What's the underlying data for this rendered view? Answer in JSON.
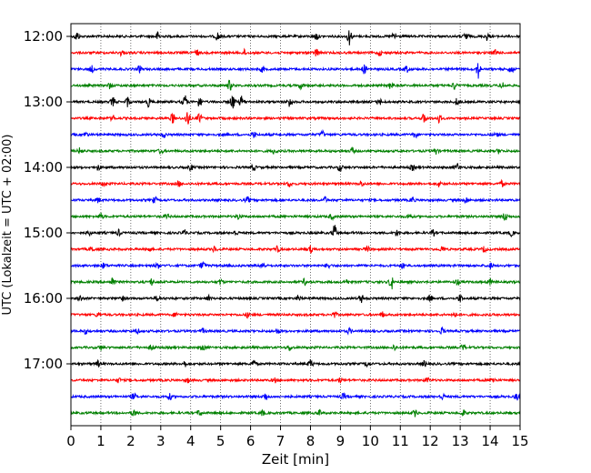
{
  "chart_data": {
    "type": "line",
    "title": "",
    "xlabel": "Zeit  [min]",
    "ylabel": "UTC (Lokalzeit = UTC + 02:00)",
    "xlim": [
      0,
      15
    ],
    "x_ticks": [
      "0",
      "1",
      "2",
      "3",
      "4",
      "5",
      "6",
      "7",
      "8",
      "9",
      "10",
      "11",
      "12",
      "13",
      "14",
      "15"
    ],
    "y_ticks": [
      "12:00",
      "13:00",
      "14:00",
      "15:00",
      "16:00",
      "17:00"
    ],
    "grid": "vertical dotted",
    "trace_colors": [
      "#000000",
      "#ff0000",
      "#0000ff",
      "#008000"
    ],
    "traces": [
      {
        "start": "12:00",
        "color": "#000000",
        "events": [
          [
            0.2,
            0.5
          ],
          [
            2.9,
            0.45
          ],
          [
            4.9,
            0.45
          ],
          [
            8.2,
            0.4
          ],
          [
            9.3,
            0.9
          ],
          [
            10.8,
            0.4
          ],
          [
            13.2,
            0.45
          ],
          [
            13.9,
            0.4
          ]
        ]
      },
      {
        "start": "12:15",
        "color": "#ff0000",
        "events": [
          [
            1.7,
            0.3
          ],
          [
            4.2,
            0.3
          ],
          [
            5.8,
            0.3
          ],
          [
            8.2,
            0.45
          ],
          [
            10.3,
            0.3
          ],
          [
            14.2,
            0.35
          ]
        ]
      },
      {
        "start": "12:30",
        "color": "#0000ff",
        "events": [
          [
            0.7,
            0.35
          ],
          [
            2.3,
            0.35
          ],
          [
            6.4,
            0.3
          ],
          [
            9.8,
            0.45
          ],
          [
            11.2,
            0.35
          ],
          [
            13.6,
            0.95
          ],
          [
            14.7,
            0.45
          ]
        ]
      },
      {
        "start": "12:45",
        "color": "#008000",
        "events": [
          [
            1.3,
            0.3
          ],
          [
            5.3,
            0.55
          ],
          [
            7.7,
            0.35
          ],
          [
            10.7,
            0.45
          ],
          [
            12.8,
            0.4
          ],
          [
            14.4,
            0.35
          ]
        ]
      },
      {
        "start": "13:00",
        "color": "#000000",
        "events": [
          [
            1.4,
            0.5
          ],
          [
            1.9,
            0.55
          ],
          [
            2.6,
            0.5
          ],
          [
            3.8,
            0.75
          ],
          [
            4.3,
            0.6
          ],
          [
            5.4,
            0.85
          ],
          [
            5.7,
            0.6
          ],
          [
            7.3,
            0.6
          ],
          [
            10.3,
            0.35
          ],
          [
            12.9,
            0.4
          ]
        ]
      },
      {
        "start": "13:15",
        "color": "#ff0000",
        "events": [
          [
            1.4,
            0.3
          ],
          [
            3.4,
            0.55
          ],
          [
            3.9,
            0.9
          ],
          [
            4.3,
            0.5
          ],
          [
            11.8,
            0.5
          ],
          [
            12.3,
            0.45
          ]
        ]
      },
      {
        "start": "13:30",
        "color": "#0000ff",
        "events": [
          [
            0.5,
            0.25
          ],
          [
            3.1,
            0.3
          ],
          [
            6.1,
            0.3
          ],
          [
            8.4,
            0.35
          ],
          [
            11.5,
            0.35
          ],
          [
            14.2,
            0.25
          ]
        ]
      },
      {
        "start": "13:45",
        "color": "#008000",
        "events": [
          [
            0.3,
            0.3
          ],
          [
            3.0,
            0.3
          ],
          [
            6.8,
            0.3
          ],
          [
            9.4,
            0.3
          ],
          [
            12.2,
            0.3
          ],
          [
            14.3,
            0.25
          ]
        ]
      },
      {
        "start": "14:00",
        "color": "#000000",
        "events": [
          [
            0.9,
            0.3
          ],
          [
            4.0,
            0.3
          ],
          [
            6.1,
            0.3
          ],
          [
            9.0,
            0.4
          ],
          [
            11.4,
            0.3
          ],
          [
            12.9,
            0.4
          ]
        ]
      },
      {
        "start": "14:15",
        "color": "#ff0000",
        "events": [
          [
            1.1,
            0.25
          ],
          [
            3.6,
            0.3
          ],
          [
            7.3,
            0.3
          ],
          [
            9.7,
            0.3
          ],
          [
            12.3,
            0.3
          ],
          [
            14.4,
            0.3
          ]
        ]
      },
      {
        "start": "14:30",
        "color": "#0000ff",
        "events": [
          [
            0.9,
            0.3
          ],
          [
            2.8,
            0.3
          ],
          [
            5.9,
            0.3
          ],
          [
            8.5,
            0.3
          ],
          [
            11.4,
            0.3
          ],
          [
            13.2,
            0.3
          ]
        ]
      },
      {
        "start": "14:45",
        "color": "#008000",
        "events": [
          [
            1.0,
            0.35
          ],
          [
            3.2,
            0.3
          ],
          [
            5.6,
            0.3
          ],
          [
            8.7,
            0.3
          ],
          [
            11.3,
            0.3
          ],
          [
            14.5,
            0.5
          ]
        ]
      },
      {
        "start": "15:00",
        "color": "#000000",
        "events": [
          [
            0.6,
            0.3
          ],
          [
            1.6,
            0.3
          ],
          [
            3.8,
            0.3
          ],
          [
            5.5,
            0.3
          ],
          [
            8.8,
            0.85
          ],
          [
            10.9,
            0.35
          ],
          [
            12.1,
            0.3
          ],
          [
            14.7,
            0.3
          ]
        ]
      },
      {
        "start": "15:15",
        "color": "#ff0000",
        "events": [
          [
            0.7,
            0.3
          ],
          [
            2.6,
            0.3
          ],
          [
            4.8,
            0.3
          ],
          [
            6.9,
            0.3
          ],
          [
            8.0,
            0.35
          ],
          [
            9.9,
            0.3
          ],
          [
            12.4,
            0.3
          ],
          [
            13.8,
            0.3
          ]
        ]
      },
      {
        "start": "15:30",
        "color": "#0000ff",
        "events": [
          [
            1.1,
            0.3
          ],
          [
            2.9,
            0.3
          ],
          [
            4.4,
            0.5
          ],
          [
            6.4,
            0.4
          ],
          [
            8.6,
            0.3
          ],
          [
            11.1,
            0.35
          ],
          [
            14.0,
            0.3
          ]
        ]
      },
      {
        "start": "15:45",
        "color": "#008000",
        "events": [
          [
            1.4,
            0.55
          ],
          [
            2.7,
            0.35
          ],
          [
            5.0,
            0.3
          ],
          [
            7.8,
            0.3
          ],
          [
            9.2,
            0.3
          ],
          [
            10.7,
            0.8
          ],
          [
            12.9,
            0.3
          ],
          [
            14.0,
            0.3
          ]
        ]
      },
      {
        "start": "16:00",
        "color": "#000000",
        "events": [
          [
            0.3,
            0.3
          ],
          [
            1.7,
            0.3
          ],
          [
            2.9,
            0.3
          ],
          [
            4.6,
            0.3
          ],
          [
            7.6,
            0.3
          ],
          [
            9.7,
            0.4
          ],
          [
            12.0,
            0.35
          ],
          [
            13.0,
            0.4
          ]
        ]
      },
      {
        "start": "16:15",
        "color": "#ff0000",
        "events": [
          [
            0.9,
            0.25
          ],
          [
            3.5,
            0.25
          ],
          [
            5.9,
            0.25
          ],
          [
            8.8,
            0.3
          ],
          [
            10.4,
            0.3
          ],
          [
            12.8,
            0.3
          ]
        ]
      },
      {
        "start": "16:30",
        "color": "#0000ff",
        "events": [
          [
            0.5,
            0.25
          ],
          [
            2.2,
            0.25
          ],
          [
            4.4,
            0.25
          ],
          [
            6.9,
            0.3
          ],
          [
            9.3,
            0.3
          ],
          [
            12.4,
            0.35
          ]
        ]
      },
      {
        "start": "16:45",
        "color": "#008000",
        "events": [
          [
            1.0,
            0.25
          ],
          [
            2.7,
            0.3
          ],
          [
            4.4,
            0.3
          ],
          [
            7.3,
            0.3
          ],
          [
            10.8,
            0.3
          ],
          [
            13.1,
            0.3
          ]
        ]
      },
      {
        "start": "17:00",
        "color": "#000000",
        "events": [
          [
            0.9,
            0.3
          ],
          [
            3.8,
            0.3
          ],
          [
            6.1,
            0.35
          ],
          [
            8.0,
            0.45
          ],
          [
            9.9,
            0.35
          ],
          [
            11.8,
            0.3
          ]
        ]
      },
      {
        "start": "17:15",
        "color": "#ff0000",
        "events": [
          [
            1.6,
            0.25
          ],
          [
            3.9,
            0.25
          ],
          [
            6.8,
            0.25
          ],
          [
            9.0,
            0.25
          ],
          [
            11.9,
            0.3
          ],
          [
            14.1,
            0.3
          ]
        ]
      },
      {
        "start": "17:30",
        "color": "#0000ff",
        "events": [
          [
            2.1,
            0.35
          ],
          [
            3.3,
            0.3
          ],
          [
            6.5,
            0.4
          ],
          [
            9.1,
            0.3
          ],
          [
            12.4,
            0.3
          ],
          [
            14.9,
            0.35
          ]
        ]
      },
      {
        "start": "17:45",
        "color": "#008000",
        "events": [
          [
            2.1,
            0.4
          ],
          [
            4.3,
            0.3
          ],
          [
            6.4,
            0.3
          ],
          [
            8.3,
            0.3
          ],
          [
            11.5,
            0.35
          ],
          [
            13.1,
            0.3
          ]
        ]
      }
    ]
  }
}
